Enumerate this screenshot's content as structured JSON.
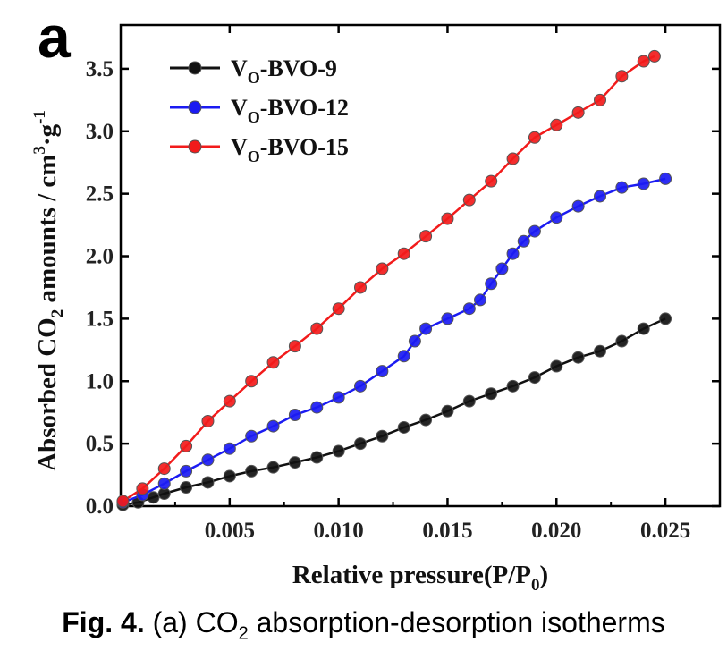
{
  "panel_label": "a",
  "caption": {
    "label": "Fig. 4.",
    "pre": "(a) CO",
    "sub": "2",
    "post": " absorption-desorption isotherms"
  },
  "chart_data": {
    "type": "scatter",
    "xlabel": {
      "main": "Relative pressure(P/P",
      "sub": "0",
      "tail": ")"
    },
    "ylabel": {
      "pre": "Absorbed CO",
      "sub": "2",
      "mid": " amounts / cm",
      "sup1": "3",
      "dot": "·g",
      "sup2": "-1"
    },
    "xlim": [
      0,
      0.0275
    ],
    "ylim": [
      0,
      3.85
    ],
    "xticks": [
      0.005,
      0.01,
      0.015,
      0.02,
      0.025
    ],
    "xtick_labels": [
      "0.005",
      "0.010",
      "0.015",
      "0.020",
      "0.025"
    ],
    "yticks": [
      0.0,
      0.5,
      1.0,
      1.5,
      2.0,
      2.5,
      3.0,
      3.5
    ],
    "ytick_labels": [
      "0.0",
      "0.5",
      "1.0",
      "1.5",
      "2.0",
      "2.5",
      "3.0",
      "3.5"
    ],
    "legend_position": "top-left",
    "series": [
      {
        "name": "Vo-BVO-9",
        "name_parts": {
          "base": "V",
          "sub": "O",
          "rest": "-BVO-9"
        },
        "color": "#111111",
        "points": [
          [
            0.0001,
            0.01
          ],
          [
            0.0008,
            0.03
          ],
          [
            0.0015,
            0.07
          ],
          [
            0.002,
            0.1
          ],
          [
            0.003,
            0.15
          ],
          [
            0.004,
            0.19
          ],
          [
            0.005,
            0.24
          ],
          [
            0.006,
            0.28
          ],
          [
            0.007,
            0.31
          ],
          [
            0.008,
            0.35
          ],
          [
            0.009,
            0.39
          ],
          [
            0.01,
            0.44
          ],
          [
            0.011,
            0.5
          ],
          [
            0.012,
            0.56
          ],
          [
            0.013,
            0.63
          ],
          [
            0.014,
            0.69
          ],
          [
            0.015,
            0.76
          ],
          [
            0.016,
            0.84
          ],
          [
            0.017,
            0.9
          ],
          [
            0.018,
            0.96
          ],
          [
            0.019,
            1.03
          ],
          [
            0.02,
            1.12
          ],
          [
            0.021,
            1.19
          ],
          [
            0.022,
            1.24
          ],
          [
            0.023,
            1.32
          ],
          [
            0.024,
            1.42
          ],
          [
            0.025,
            1.5
          ]
        ]
      },
      {
        "name": "Vo-BVO-12",
        "name_parts": {
          "base": "V",
          "sub": "O",
          "rest": "-BVO-12"
        },
        "color": "#1b1bf2",
        "points": [
          [
            0.0001,
            0.03
          ],
          [
            0.001,
            0.09
          ],
          [
            0.002,
            0.18
          ],
          [
            0.003,
            0.28
          ],
          [
            0.004,
            0.37
          ],
          [
            0.005,
            0.46
          ],
          [
            0.006,
            0.56
          ],
          [
            0.007,
            0.64
          ],
          [
            0.008,
            0.73
          ],
          [
            0.009,
            0.79
          ],
          [
            0.01,
            0.87
          ],
          [
            0.011,
            0.96
          ],
          [
            0.012,
            1.08
          ],
          [
            0.013,
            1.2
          ],
          [
            0.0135,
            1.32
          ],
          [
            0.014,
            1.42
          ],
          [
            0.015,
            1.5
          ],
          [
            0.016,
            1.58
          ],
          [
            0.0165,
            1.65
          ],
          [
            0.017,
            1.78
          ],
          [
            0.0175,
            1.9
          ],
          [
            0.018,
            2.02
          ],
          [
            0.0185,
            2.12
          ],
          [
            0.019,
            2.2
          ],
          [
            0.02,
            2.31
          ],
          [
            0.021,
            2.4
          ],
          [
            0.022,
            2.48
          ],
          [
            0.023,
            2.55
          ],
          [
            0.024,
            2.58
          ],
          [
            0.025,
            2.62
          ]
        ]
      },
      {
        "name": "Vo-BVO-15",
        "name_parts": {
          "base": "V",
          "sub": "O",
          "rest": "-BVO-15"
        },
        "color": "#f21b1b",
        "points": [
          [
            0.0001,
            0.04
          ],
          [
            0.001,
            0.14
          ],
          [
            0.002,
            0.3
          ],
          [
            0.003,
            0.48
          ],
          [
            0.004,
            0.68
          ],
          [
            0.005,
            0.84
          ],
          [
            0.006,
            1.0
          ],
          [
            0.007,
            1.15
          ],
          [
            0.008,
            1.28
          ],
          [
            0.009,
            1.42
          ],
          [
            0.01,
            1.58
          ],
          [
            0.011,
            1.75
          ],
          [
            0.012,
            1.9
          ],
          [
            0.013,
            2.02
          ],
          [
            0.014,
            2.16
          ],
          [
            0.015,
            2.3
          ],
          [
            0.016,
            2.45
          ],
          [
            0.017,
            2.6
          ],
          [
            0.018,
            2.78
          ],
          [
            0.019,
            2.95
          ],
          [
            0.02,
            3.05
          ],
          [
            0.021,
            3.15
          ],
          [
            0.022,
            3.25
          ],
          [
            0.023,
            3.44
          ],
          [
            0.024,
            3.56
          ],
          [
            0.0245,
            3.6
          ]
        ]
      }
    ]
  }
}
